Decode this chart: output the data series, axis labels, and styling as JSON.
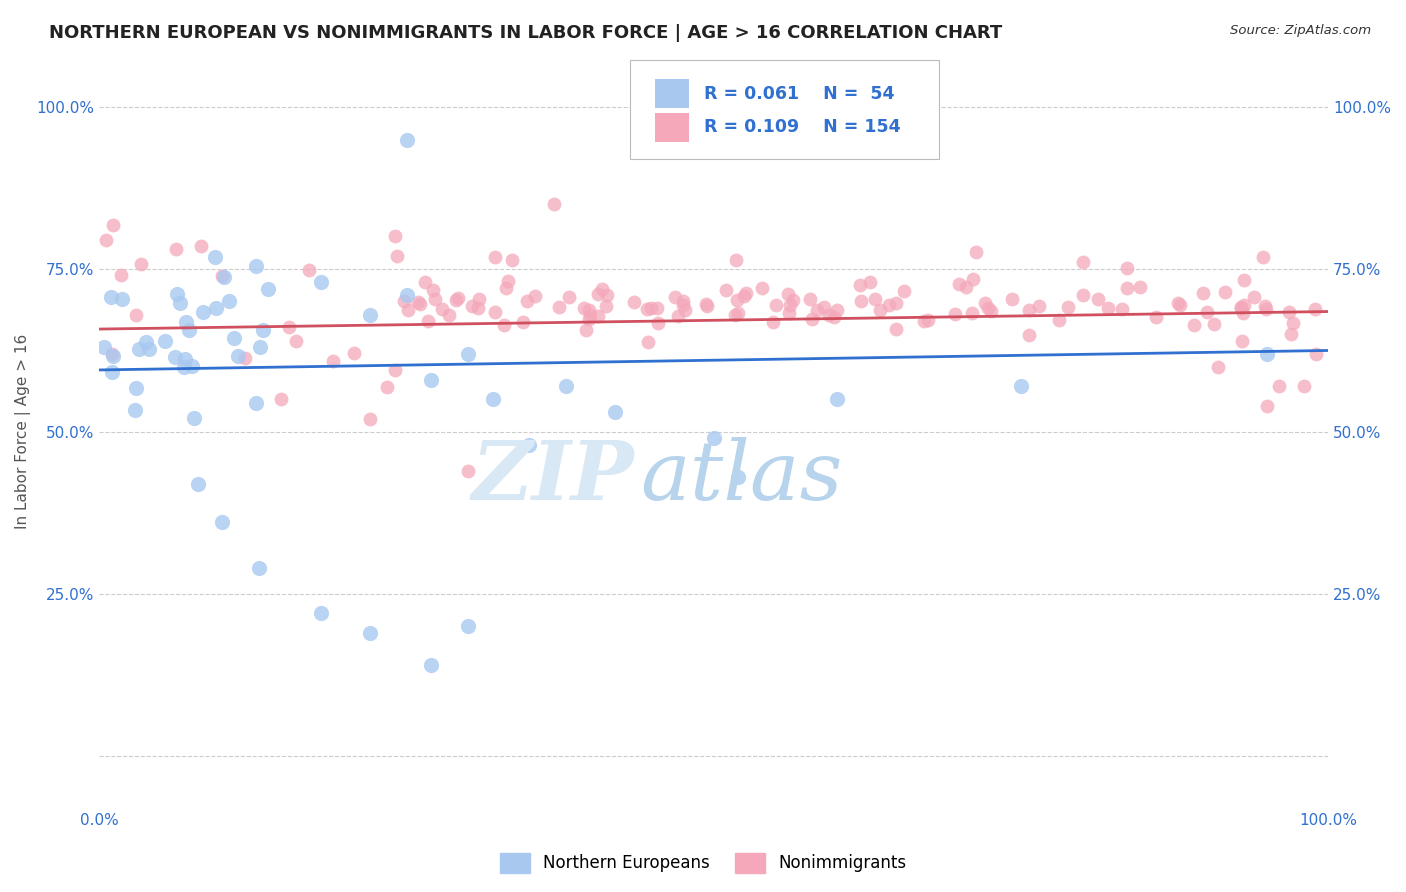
{
  "title": "NORTHERN EUROPEAN VS NONIMMIGRANTS IN LABOR FORCE | AGE > 16 CORRELATION CHART",
  "source_text": "Source: ZipAtlas.com",
  "ylabel": "In Labor Force | Age > 16",
  "xlim": [
    0,
    1
  ],
  "ylim": [
    -0.08,
    1.08
  ],
  "title_fontsize": 13,
  "axis_label_fontsize": 11,
  "tick_fontsize": 11,
  "blue_color": "#A8C8F0",
  "pink_color": "#F4A8BA",
  "blue_line_color": "#3070D0",
  "pink_line_color": "#D05060",
  "text_color_blue": "#3070D0",
  "watermark_zip_color": "#D8E8F4",
  "watermark_atlas_color": "#B8D4EC",
  "background_color": "#FFFFFF",
  "grid_color": "#CCCCCC",
  "blue_line_y0": 0.595,
  "blue_line_y1": 0.625,
  "pink_line_y0": 0.658,
  "pink_line_y1": 0.685,
  "yticks": [
    0.0,
    0.25,
    0.5,
    0.75,
    1.0
  ],
  "ytick_labels": [
    "",
    "25.0%",
    "50.0%",
    "75.0%",
    "100.0%"
  ],
  "xticks": [
    0.0,
    0.1,
    0.2,
    0.3,
    0.4,
    0.5,
    0.6,
    0.7,
    0.8,
    0.9,
    1.0
  ],
  "xtick_labels_left": [
    "0.0%",
    "",
    "",
    "",
    "",
    "",
    "",
    "",
    "",
    "",
    ""
  ],
  "xtick_labels_right": [
    "",
    "",
    "",
    "",
    "",
    "",
    "",
    "",
    "",
    "",
    "100.0%"
  ]
}
